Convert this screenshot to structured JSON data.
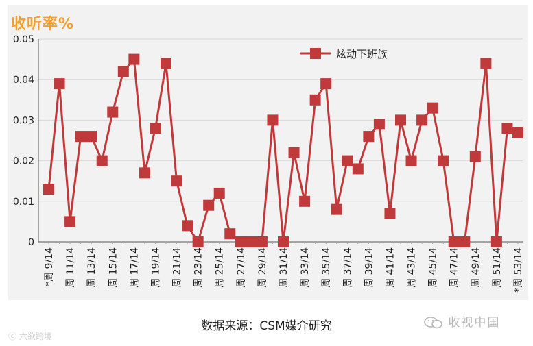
{
  "title": "收听率%",
  "source_note": "数据来源：CSM媒介研究",
  "wechat_account": "收视中国",
  "watermark": "六欲跨境",
  "colors": {
    "series": "#c0393b",
    "title": "#f0a030",
    "panel": "#f2f2f2",
    "grid": "#d8d8d8"
  },
  "chart_data": {
    "type": "line",
    "title": "收听率%",
    "legend_position": "top-center",
    "grid": true,
    "ylim": [
      0,
      0.05
    ],
    "yticks": [
      "0",
      "0.01",
      "0.02",
      "0.03",
      "0.04",
      "0.05"
    ],
    "x_tick_labels": [
      "*周 9/14",
      "周 11/14",
      "周 13/14",
      "周 15/14",
      "周 17/14",
      "周 19/14",
      "周 21/14",
      "周 23/14",
      "周 25/14",
      "周 27/14",
      "周 29/14",
      "周 31/14",
      "周 33/14",
      "周 35/14",
      "周 37/14",
      "周 39/14",
      "周 41/14",
      "周 43/14",
      "周 45/14",
      "周 47/14",
      "周 49/14",
      "周 51/14",
      "*周 53/14"
    ],
    "x_label_positions": [
      0,
      2,
      4,
      6,
      8,
      10,
      12,
      14,
      16,
      18,
      20,
      22,
      24,
      26,
      28,
      30,
      32,
      34,
      36,
      38,
      40,
      42,
      44
    ],
    "series": [
      {
        "name": "炫动下班族",
        "values": [
          0.013,
          0.039,
          0.005,
          0.026,
          0.026,
          0.02,
          0.032,
          0.042,
          0.045,
          0.017,
          0.028,
          0.044,
          0.015,
          0.004,
          0.0,
          0.009,
          0.012,
          0.002,
          0.0,
          0.0,
          0.0,
          0.03,
          0.0,
          0.022,
          0.01,
          0.035,
          0.039,
          0.008,
          0.02,
          0.018,
          0.026,
          0.029,
          0.007,
          0.03,
          0.02,
          0.03,
          0.033,
          0.02,
          0.0,
          0.0,
          0.021,
          0.044,
          0.0,
          0.028,
          0.027
        ]
      }
    ]
  }
}
